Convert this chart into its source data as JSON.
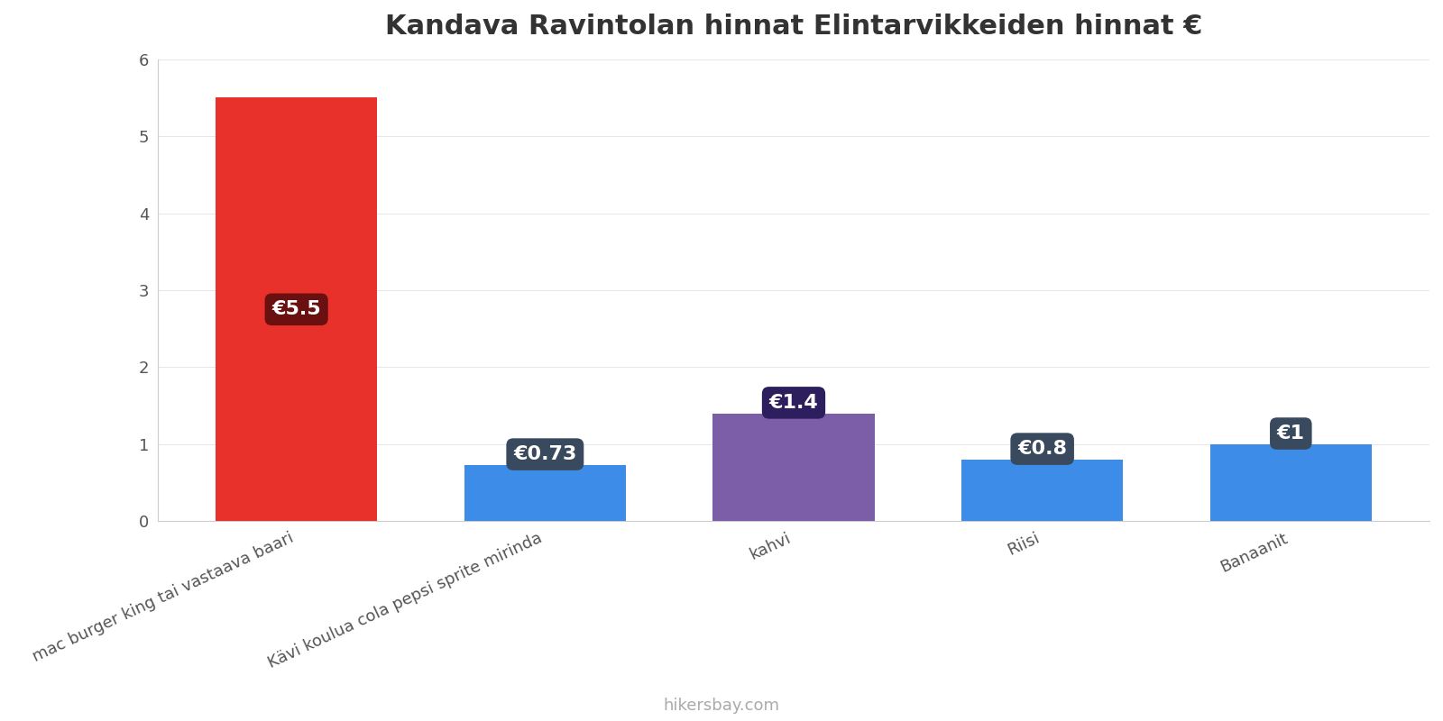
{
  "title": "Kandava Ravintolan hinnat Elintarvikkeiden hinnat €",
  "categories": [
    "mac burger king tai vastaava baari",
    "Kävi koulua cola pepsi sprite mirinda",
    "kahvi",
    "Riisi",
    "Banaanit"
  ],
  "values": [
    5.5,
    0.73,
    1.4,
    0.8,
    1.0
  ],
  "bar_colors": [
    "#e8312a",
    "#3d8de8",
    "#7b5ea7",
    "#3d8de8",
    "#3d8de8"
  ],
  "label_texts": [
    "€5.5",
    "€0.73",
    "€1.4",
    "€0.8",
    "€1"
  ],
  "label_bg_colors": [
    "#6b1010",
    "#3a4a5e",
    "#2d1f5e",
    "#3a4a5e",
    "#3a4a5e"
  ],
  "ylim": [
    0,
    6
  ],
  "yticks": [
    0,
    1,
    2,
    3,
    4,
    5,
    6
  ],
  "background_color": "#ffffff",
  "title_fontsize": 22,
  "tick_fontsize": 13,
  "label_fontsize": 16,
  "watermark": "hikersbay.com",
  "bar_width": 0.65
}
